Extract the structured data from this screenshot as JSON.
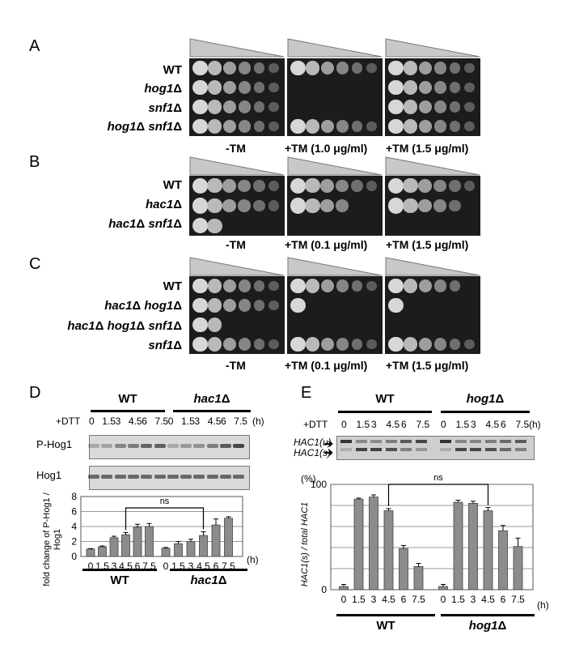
{
  "panels": {
    "A": {
      "label": "A",
      "strains": [
        "WT",
        "hog1Δ",
        "snf1Δ",
        "hog1Δ snf1Δ"
      ],
      "conditions": [
        "-TM",
        "+TM (1.0 μg/ml)",
        "+TM (1.5 μg/ml)"
      ]
    },
    "B": {
      "label": "B",
      "strains": [
        "WT",
        "hac1Δ",
        "hac1Δ snf1Δ"
      ],
      "conditions": [
        "-TM",
        "+TM (0.1 μg/ml)",
        "+TM (1.5 μg/ml)"
      ]
    },
    "C": {
      "label": "C",
      "strains": [
        "WT",
        "hac1Δ hog1Δ",
        "hac1Δ hog1Δ snf1Δ",
        "snf1Δ"
      ],
      "conditions": [
        "-TM",
        "+TM (0.1 μg/ml)",
        "+TM (1.5 μg/ml)"
      ]
    },
    "D": {
      "label": "D",
      "group_labels": [
        "WT",
        "hac1Δ"
      ],
      "treatment_label": "+DTT",
      "time_unit": "(h)",
      "times": [
        "0",
        "1.5",
        "3",
        "4.5",
        "6",
        "7.5"
      ],
      "blot_labels": [
        "P-Hog1",
        "Hog1"
      ],
      "ns_label": "ns"
    },
    "E": {
      "label": "E",
      "group_labels": [
        "WT",
        "hog1Δ"
      ],
      "treatment_label": "+DTT",
      "time_unit": "(h)",
      "times": [
        "0",
        "1.5",
        "3",
        "4.5",
        "6",
        "7.5"
      ],
      "band_labels": [
        "HAC1(u)",
        "HAC1(s)"
      ],
      "percent_label": "(%)",
      "ns_label": "ns"
    }
  },
  "chart_data": [
    {
      "type": "bar",
      "panel": "D",
      "ylabel": "fold change of P-Hog1 / Hog1",
      "ylim": [
        0,
        8
      ],
      "yticks": [
        0,
        2,
        4,
        6,
        8
      ],
      "grid": true,
      "categories": [
        "0",
        "1.5",
        "3",
        "4.5",
        "6",
        "7.5",
        "0",
        "1.5",
        "3",
        "4.5",
        "6",
        "7.5"
      ],
      "groups": [
        "WT",
        "hac1Δ"
      ],
      "values": [
        1.0,
        1.3,
        2.5,
        2.9,
        3.9,
        4.0,
        1.1,
        1.7,
        2.0,
        2.8,
        4.2,
        5.1
      ],
      "errors": [
        0.05,
        0.1,
        0.2,
        0.3,
        0.4,
        0.4,
        0.1,
        0.3,
        0.3,
        0.5,
        0.8,
        0.2
      ],
      "annotation": "ns"
    },
    {
      "type": "bar",
      "panel": "E",
      "ylabel": "HAC1(s) / total HAC1",
      "ylim": [
        0,
        100
      ],
      "yticks": [
        0,
        100
      ],
      "grid": true,
      "categories": [
        "0",
        "1.5",
        "3",
        "4.5",
        "6",
        "7.5",
        "0",
        "1.5",
        "3",
        "4.5",
        "6",
        "7.5"
      ],
      "groups": [
        "WT",
        "hog1Δ"
      ],
      "values": [
        3,
        86,
        88,
        75,
        39,
        22,
        3,
        83,
        82,
        75,
        56,
        41
      ],
      "errors": [
        2,
        1,
        2,
        2,
        3,
        3,
        2,
        2,
        2,
        3,
        5,
        8
      ],
      "annotation": "ns"
    }
  ]
}
